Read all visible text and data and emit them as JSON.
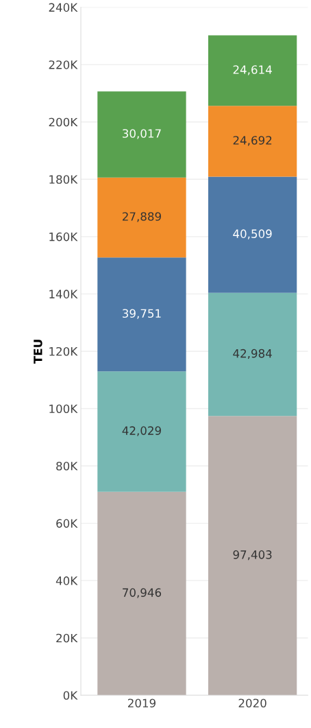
{
  "chart_data": {
    "type": "bar",
    "stacked": true,
    "ylabel": "TEU",
    "categories": [
      "2019",
      "2020"
    ],
    "series": [
      {
        "color": "#bab0ac",
        "values": [
          70946,
          97403
        ],
        "value_labels": [
          "70,946",
          "97,403"
        ]
      },
      {
        "color": "#76b7b2",
        "values": [
          42029,
          42984
        ],
        "value_labels": [
          "42,029",
          "42,984"
        ]
      },
      {
        "color": "#4e79a7",
        "values": [
          39751,
          40509
        ],
        "value_labels": [
          "39,751",
          "40,509"
        ]
      },
      {
        "color": "#f28e2b",
        "values": [
          27889,
          24692
        ],
        "value_labels": [
          "27,889",
          "24,692"
        ]
      },
      {
        "color": "#59a14f",
        "values": [
          30017,
          24614
        ],
        "value_labels": [
          "30,017",
          "24,614"
        ]
      }
    ],
    "grid": "y",
    "ylim": [
      0,
      240000
    ],
    "yticks": [
      {
        "value": 0,
        "label": "0K"
      },
      {
        "value": 20000,
        "label": "20K"
      },
      {
        "value": 40000,
        "label": "40K"
      },
      {
        "value": 60000,
        "label": "60K"
      },
      {
        "value": 80000,
        "label": "80K"
      },
      {
        "value": 100000,
        "label": "100K"
      },
      {
        "value": 120000,
        "label": "120K"
      },
      {
        "value": 140000,
        "label": "140K"
      },
      {
        "value": 160000,
        "label": "160K"
      },
      {
        "value": 180000,
        "label": "180K"
      },
      {
        "value": 200000,
        "label": "200K"
      },
      {
        "value": 220000,
        "label": "220K"
      },
      {
        "value": 240000,
        "label": "240K"
      }
    ]
  }
}
